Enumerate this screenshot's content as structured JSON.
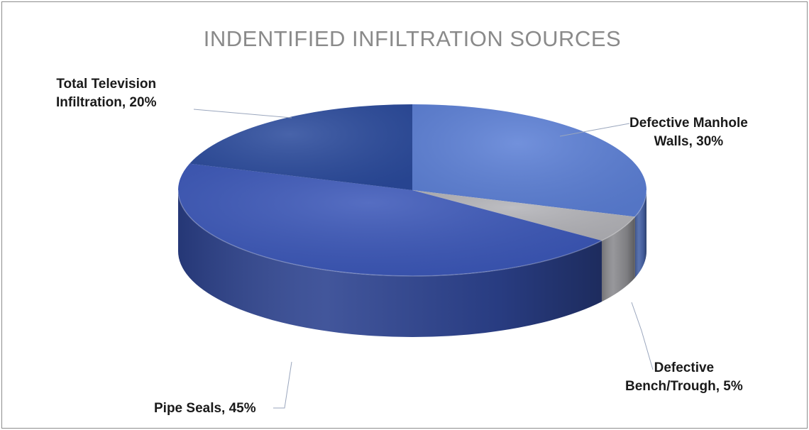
{
  "chart_data": {
    "type": "pie",
    "style": "3d",
    "title": "INDENTIFIED INFILTRATION SOURCES",
    "slices": [
      {
        "label": "Defective Manhole Walls",
        "value": 30,
        "display": "Defective Manhole Walls, 30%",
        "lines": [
          "Defective Manhole",
          "Walls, 30%"
        ],
        "color": "#5b7fd6"
      },
      {
        "label": "Defective Bench/Trough",
        "value": 5,
        "display": "Defective Bench/Trough, 5%",
        "lines": [
          "Defective",
          "Bench/Trough, 5%"
        ],
        "color": "#b3b3b8"
      },
      {
        "label": "Pipe Seals",
        "value": 45,
        "display": "Pipe Seals, 45%",
        "lines": [
          "Pipe Seals, 45%"
        ],
        "color": "#3a56b8"
      },
      {
        "label": "Total Television Infiltration",
        "value": 20,
        "display": "Total Television Infiltration, 20%",
        "lines": [
          "Total Television",
          "Infiltration, 20%"
        ],
        "color": "#2a4a9c"
      }
    ],
    "legend": "none"
  }
}
